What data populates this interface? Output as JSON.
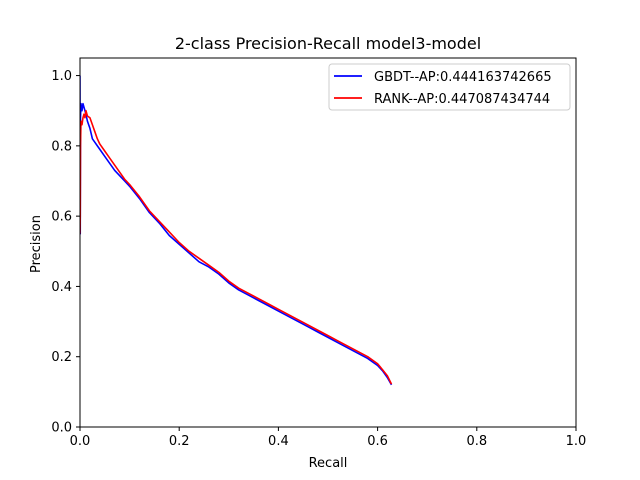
{
  "chart_data": {
    "type": "line",
    "title": "2-class Precision-Recall model3-model",
    "xlabel": "Recall",
    "ylabel": "Precision",
    "xlim": [
      0,
      1
    ],
    "ylim": [
      0,
      1.05
    ],
    "xticks": [
      0.0,
      0.2,
      0.4,
      0.6,
      0.8,
      1.0
    ],
    "yticks": [
      0.0,
      0.2,
      0.4,
      0.6,
      0.8,
      1.0
    ],
    "xtick_labels": [
      "0.0",
      "0.2",
      "0.4",
      "0.6",
      "0.8",
      "1.0"
    ],
    "ytick_labels": [
      "0.0",
      "0.2",
      "0.4",
      "0.6",
      "0.8",
      "1.0"
    ],
    "grid": false,
    "legend_position": "top-right",
    "series": [
      {
        "name": "GBDT--AP:0.444163742665",
        "color": "#0000ff",
        "x": [
          0.0,
          0.0005,
          0.001,
          0.002,
          0.004,
          0.006,
          0.008,
          0.01,
          0.012,
          0.015,
          0.02,
          0.025,
          0.03,
          0.035,
          0.04,
          0.05,
          0.06,
          0.07,
          0.08,
          0.09,
          0.1,
          0.12,
          0.14,
          0.16,
          0.18,
          0.2,
          0.22,
          0.24,
          0.26,
          0.28,
          0.3,
          0.32,
          0.34,
          0.36,
          0.38,
          0.4,
          0.42,
          0.44,
          0.46,
          0.48,
          0.5,
          0.52,
          0.54,
          0.56,
          0.58,
          0.6,
          0.61,
          0.62,
          0.628
        ],
        "y": [
          1.0,
          0.55,
          0.88,
          0.92,
          0.9,
          0.92,
          0.91,
          0.9,
          0.89,
          0.87,
          0.85,
          0.82,
          0.81,
          0.8,
          0.79,
          0.77,
          0.75,
          0.73,
          0.715,
          0.7,
          0.685,
          0.65,
          0.61,
          0.58,
          0.545,
          0.52,
          0.495,
          0.47,
          0.455,
          0.435,
          0.41,
          0.39,
          0.375,
          0.36,
          0.345,
          0.33,
          0.315,
          0.3,
          0.285,
          0.27,
          0.255,
          0.24,
          0.225,
          0.21,
          0.195,
          0.175,
          0.16,
          0.14,
          0.12
        ]
      },
      {
        "name": "RANK--AP:0.447087434744",
        "color": "#ff0000",
        "x": [
          0.0,
          0.0005,
          0.001,
          0.002,
          0.004,
          0.006,
          0.008,
          0.01,
          0.012,
          0.015,
          0.02,
          0.025,
          0.03,
          0.035,
          0.04,
          0.05,
          0.06,
          0.07,
          0.08,
          0.09,
          0.1,
          0.12,
          0.14,
          0.16,
          0.18,
          0.2,
          0.22,
          0.24,
          0.26,
          0.28,
          0.3,
          0.32,
          0.34,
          0.36,
          0.38,
          0.4,
          0.42,
          0.44,
          0.46,
          0.48,
          0.5,
          0.52,
          0.54,
          0.56,
          0.58,
          0.6,
          0.61,
          0.62,
          0.628
        ],
        "y": [
          0.55,
          0.6,
          0.8,
          0.87,
          0.86,
          0.88,
          0.89,
          0.88,
          0.9,
          0.885,
          0.88,
          0.86,
          0.84,
          0.82,
          0.805,
          0.785,
          0.765,
          0.745,
          0.725,
          0.705,
          0.69,
          0.655,
          0.615,
          0.585,
          0.555,
          0.525,
          0.5,
          0.48,
          0.46,
          0.44,
          0.415,
          0.395,
          0.38,
          0.365,
          0.35,
          0.335,
          0.32,
          0.305,
          0.29,
          0.275,
          0.26,
          0.245,
          0.23,
          0.215,
          0.2,
          0.18,
          0.163,
          0.145,
          0.122
        ]
      }
    ]
  }
}
